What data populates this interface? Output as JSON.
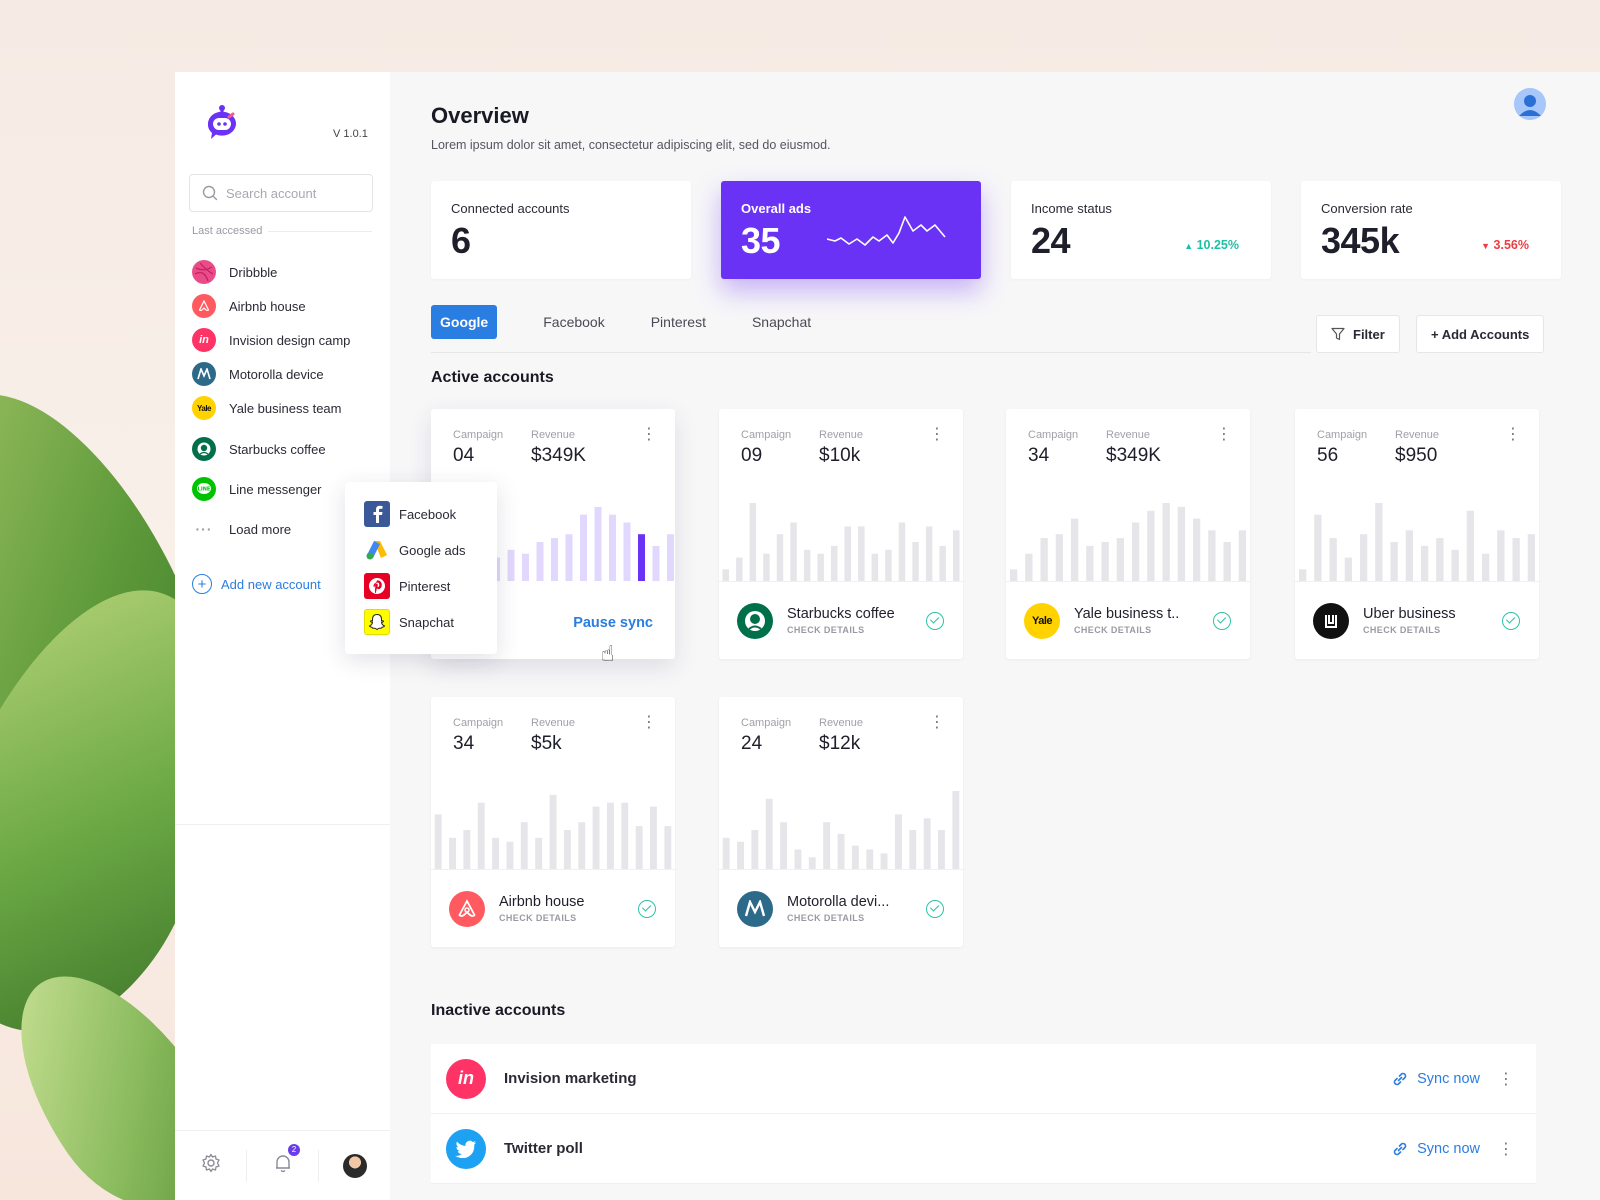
{
  "sidebar": {
    "version": "V 1.0.1",
    "search_placeholder": "Search account",
    "last_accessed_label": "Last accessed",
    "accounts": [
      {
        "label": "Dribbble",
        "icon": "dribbble-icon",
        "color": "#ea4c89"
      },
      {
        "label": "Airbnb house",
        "icon": "airbnb-icon",
        "color": "#ff5a5f"
      },
      {
        "label": "Invision design camp",
        "icon": "invision-icon",
        "color": "#ff3366"
      },
      {
        "label": "Motorolla device",
        "icon": "motorola-icon",
        "color": "#2d6a8a"
      },
      {
        "label": "Yale business team",
        "icon": "yale-icon",
        "color": "#ffd200"
      },
      {
        "label": "Starbucks coffee",
        "icon": "starbucks-icon",
        "color": "#00704a"
      },
      {
        "label": "Line messenger",
        "icon": "line-icon",
        "color": "#00c300"
      },
      {
        "label": "Load more",
        "icon": "more-icon",
        "color": "#9a9aa4"
      }
    ],
    "add_new_label": "Add new account",
    "notification_count": "2"
  },
  "popover": {
    "items": [
      {
        "label": "Facebook",
        "icon": "facebook-icon",
        "color": "#3b5998"
      },
      {
        "label": "Google ads",
        "icon": "google-ads-icon",
        "color": "#fbbc04"
      },
      {
        "label": "Pinterest",
        "icon": "pinterest-icon",
        "color": "#e60023"
      },
      {
        "label": "Snapchat",
        "icon": "snapchat-icon",
        "color": "#fffc00"
      }
    ]
  },
  "header": {
    "title": "Overview",
    "subtitle": "Lorem ipsum dolor sit amet, consectetur adipiscing elit, sed do eiusmod."
  },
  "stats": [
    {
      "label": "Connected accounts",
      "value": "6"
    },
    {
      "label": "Overall ads",
      "value": "35"
    },
    {
      "label": "Income status",
      "value": "24",
      "delta": "10.25%",
      "trend": "up"
    },
    {
      "label": "Conversion rate",
      "value": "345k",
      "delta": "3.56%",
      "trend": "down"
    }
  ],
  "tabs": [
    "Google",
    "Facebook",
    "Pinterest",
    "Snapchat"
  ],
  "toolbar": {
    "filter_label": "Filter",
    "add_label": "+ Add Accounts"
  },
  "active_section_title": "Active accounts",
  "inactive_section_title": "Inactive accounts",
  "card_labels": {
    "campaign": "Campaign",
    "revenue": "Revenue",
    "check_details": "CHECK DETAILS",
    "pause_sync": "Pause sync"
  },
  "active_accounts": [
    {
      "campaign": "04",
      "revenue": "$349K",
      "name": "",
      "logo": "",
      "bars": [
        0.3,
        0.4,
        0.35,
        0.5,
        0.55,
        0.6,
        0.85,
        0.95,
        0.85,
        0.75,
        0.6,
        0.45,
        0.6
      ],
      "highlight": 10
    },
    {
      "campaign": "09",
      "revenue": "$10k",
      "name": "Starbucks coffee",
      "logo": "starbucks-icon",
      "logo_color": "#00704a",
      "bars": [
        0.15,
        0.3,
        1,
        0.35,
        0.6,
        0.75,
        0.4,
        0.35,
        0.45,
        0.7,
        0.7,
        0.35,
        0.4,
        0.75,
        0.5,
        0.7,
        0.45,
        0.65
      ]
    },
    {
      "campaign": "34",
      "revenue": "$349K",
      "name": "Yale business t..",
      "logo": "yale-icon",
      "logo_color": "#ffd200",
      "bars": [
        0.15,
        0.35,
        0.55,
        0.6,
        0.8,
        0.45,
        0.5,
        0.55,
        0.75,
        0.9,
        1,
        0.95,
        0.8,
        0.65,
        0.5,
        0.65
      ]
    },
    {
      "campaign": "56",
      "revenue": "$950",
      "name": "Uber business",
      "logo": "uber-icon",
      "logo_color": "#111111",
      "bars": [
        0.15,
        0.85,
        0.55,
        0.3,
        0.6,
        1,
        0.5,
        0.65,
        0.45,
        0.55,
        0.4,
        0.9,
        0.35,
        0.65,
        0.55,
        0.6
      ]
    },
    {
      "campaign": "34",
      "revenue": "$5k",
      "name": "Airbnb house",
      "logo": "airbnb-icon",
      "logo_color": "#ff5a5f",
      "bars": [
        0.7,
        0.4,
        0.5,
        0.85,
        0.4,
        0.35,
        0.6,
        0.4,
        0.95,
        0.5,
        0.6,
        0.8,
        0.85,
        0.85,
        0.55,
        0.8,
        0.55
      ]
    },
    {
      "campaign": "24",
      "revenue": "$12k",
      "name": "Motorolla devi...",
      "logo": "motorola-icon",
      "logo_color": "#2d6a8a",
      "bars": [
        0.4,
        0.35,
        0.5,
        0.9,
        0.6,
        0.25,
        0.15,
        0.6,
        0.45,
        0.3,
        0.25,
        0.2,
        0.7,
        0.5,
        0.65,
        0.5,
        1
      ]
    }
  ],
  "inactive_accounts": [
    {
      "name": "Invision marketing",
      "logo": "invision-icon",
      "color": "#ff3366",
      "action": "Sync now"
    },
    {
      "name": "Twitter poll",
      "logo": "twitter-icon",
      "color": "#1da1f2",
      "action": "Sync now"
    }
  ],
  "colors": {
    "accent": "#6a32f5",
    "primary": "#2a7de1",
    "success": "#2ec3a6",
    "danger": "#ef3b44"
  }
}
